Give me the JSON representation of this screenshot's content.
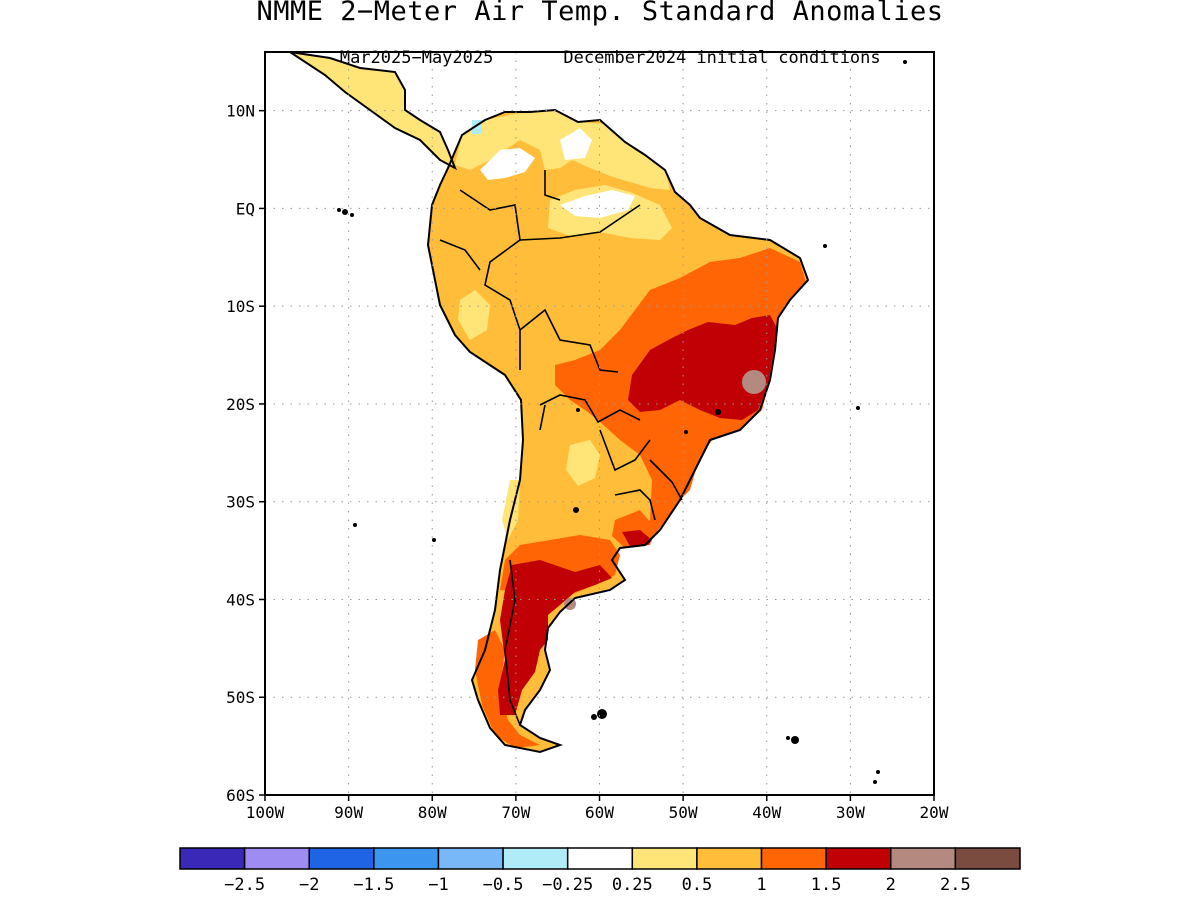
{
  "header": {
    "title": "NMME 2−Meter Air Temp. Standard Anomalies",
    "period": "Mar2025−May2025",
    "init": "December2024 initial conditions"
  },
  "axes": {
    "lat_labels": [
      "10N",
      "EQ",
      "10S",
      "20S",
      "30S",
      "40S",
      "50S",
      "60S"
    ],
    "lon_labels": [
      "100W",
      "90W",
      "80W",
      "70W",
      "60W",
      "50W",
      "40W",
      "30W",
      "20W"
    ],
    "lat_values": [
      10,
      0,
      -10,
      -20,
      -30,
      -40,
      -50,
      -60
    ],
    "lon_values": [
      -100,
      -90,
      -80,
      -70,
      -60,
      -50,
      -40,
      -30,
      -20
    ],
    "lat_range": [
      -60,
      16
    ],
    "lon_range": [
      -100,
      -20
    ],
    "grid": true
  },
  "legend": {
    "colors": [
      "#3a28b8",
      "#9e8cf3",
      "#2064e6",
      "#3c96f0",
      "#78b8f8",
      "#b0ecf8",
      "#ffffff",
      "#ffe578",
      "#ffbd3a",
      "#ff6405",
      "#c00005",
      "#b48a80",
      "#7a4c40"
    ],
    "labels": [
      "−2.5",
      "−2",
      "−1.5",
      "−1",
      "−0.5",
      "−0.25",
      "0.25",
      "0.5",
      "1",
      "1.5",
      "2",
      "2.5"
    ]
  },
  "map": {
    "ocean_color": "#ffffff",
    "land_base_color": "#ffbd3a",
    "outline_color": "#000000"
  }
}
